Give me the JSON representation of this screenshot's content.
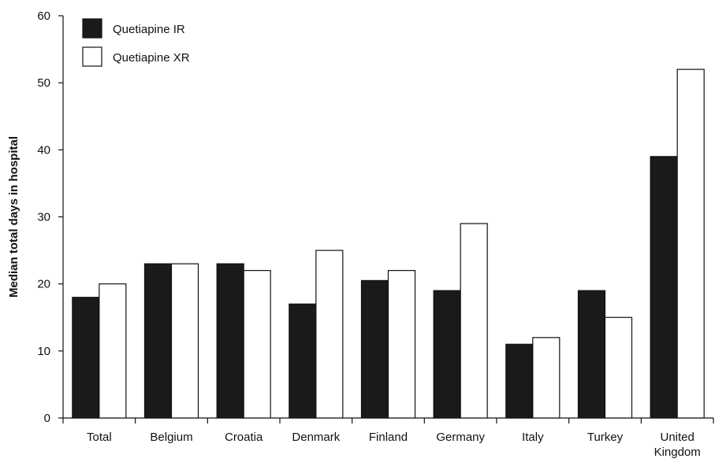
{
  "chart_data": {
    "type": "bar",
    "title": "",
    "xlabel": "",
    "ylabel": "Median total days in hospital",
    "ylim": [
      0,
      60
    ],
    "yticks": [
      0,
      10,
      20,
      30,
      40,
      50,
      60
    ],
    "grid": false,
    "legend_position": "top-left",
    "categories": [
      [
        "Total"
      ],
      [
        "Belgium"
      ],
      [
        "Croatia"
      ],
      [
        "Denmark"
      ],
      [
        "Finland"
      ],
      [
        "Germany"
      ],
      [
        "Italy"
      ],
      [
        "Turkey"
      ],
      [
        "United",
        "Kingdom"
      ]
    ],
    "series": [
      {
        "name": "Quetiapine IR",
        "color": "#1a1a1a",
        "values": [
          18,
          23,
          23,
          17,
          20.5,
          19,
          11,
          19,
          39
        ]
      },
      {
        "name": "Quetiapine XR",
        "color": "#ffffff",
        "values": [
          20,
          23,
          22,
          25,
          22,
          29,
          12,
          15,
          52
        ]
      }
    ]
  }
}
